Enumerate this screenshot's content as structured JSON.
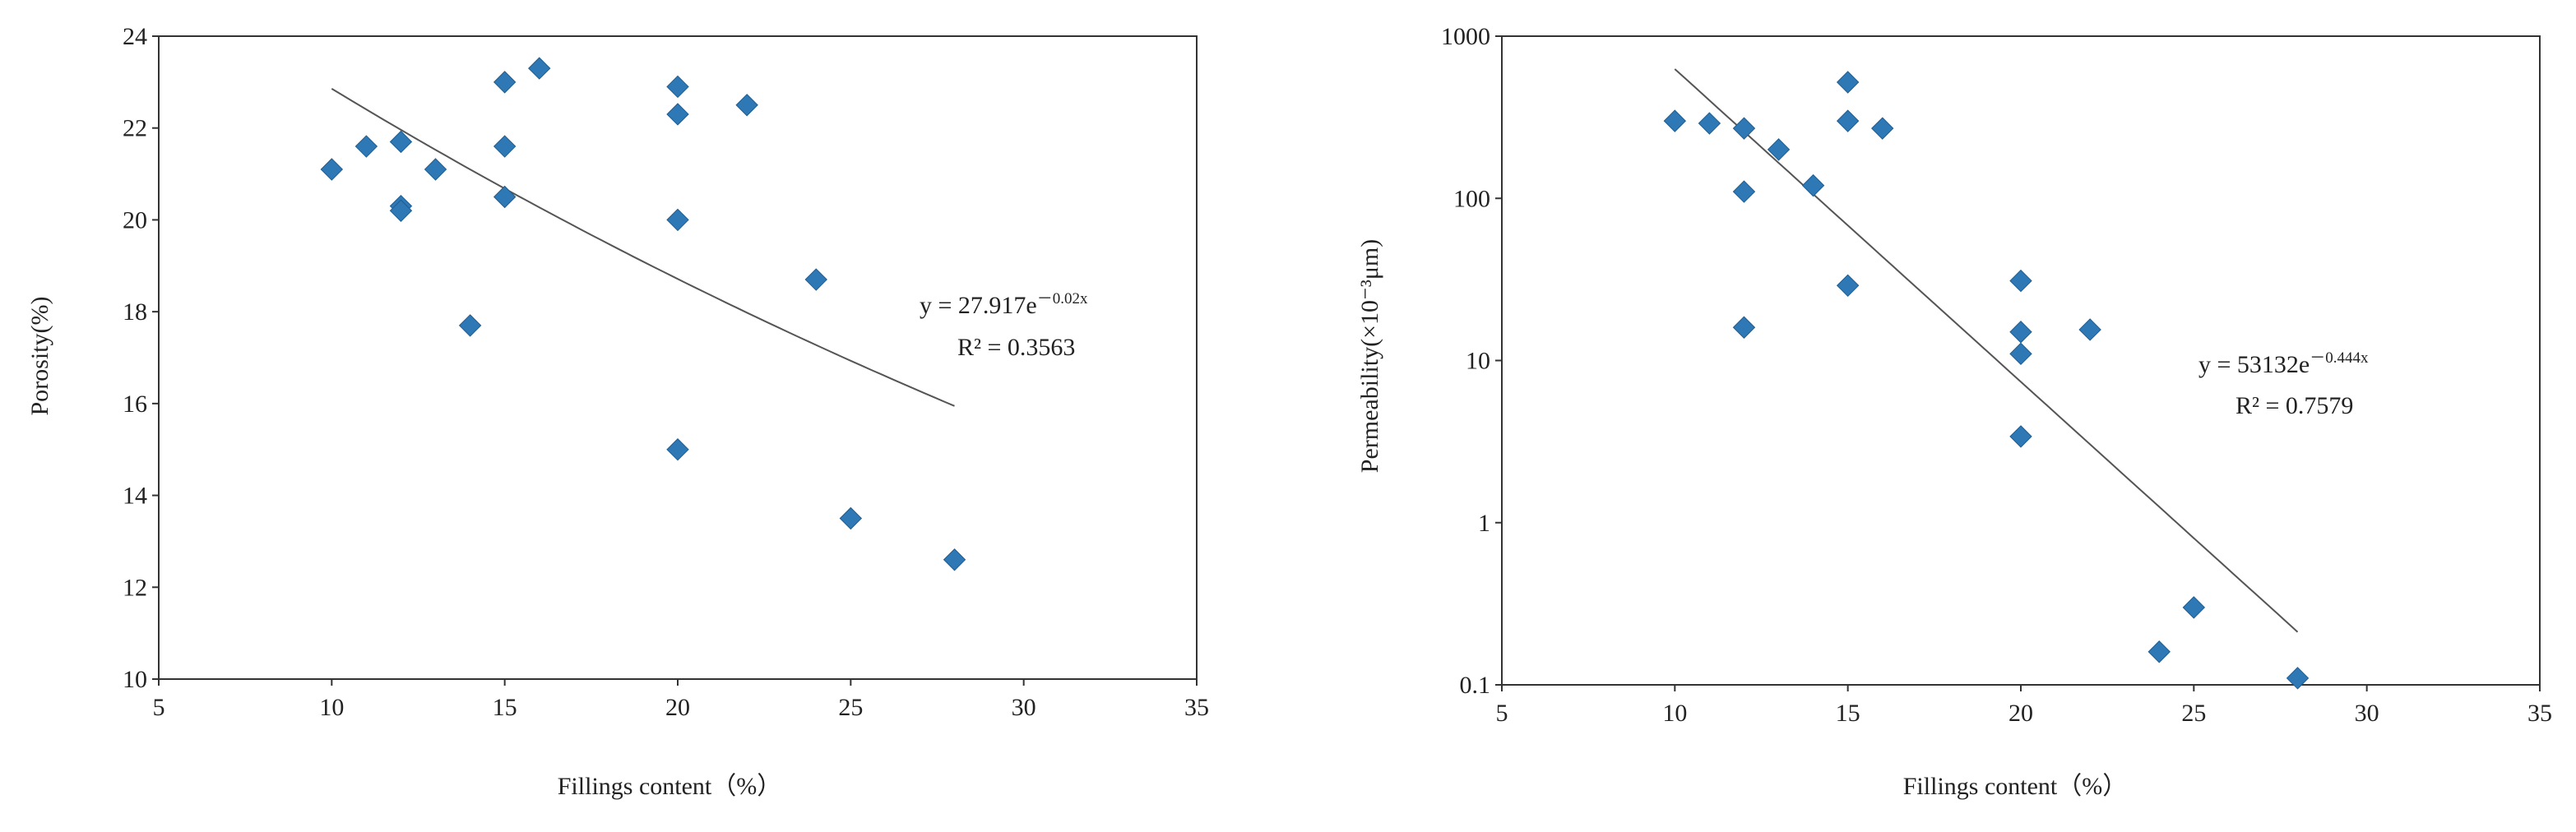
{
  "chart_data": [
    {
      "type": "scatter",
      "xlabel": "Fillings content（%）",
      "ylabel": "Porosity(%)",
      "xlim": [
        5,
        35
      ],
      "ylim": [
        10,
        24
      ],
      "xticks": [
        5,
        10,
        15,
        20,
        25,
        30,
        35
      ],
      "yticks": [
        10,
        12,
        14,
        16,
        18,
        20,
        22,
        24
      ],
      "yscale": "linear",
      "grid": false,
      "points": [
        {
          "x": 10,
          "y": 21.1
        },
        {
          "x": 11,
          "y": 21.6
        },
        {
          "x": 12,
          "y": 21.7
        },
        {
          "x": 12,
          "y": 20.3
        },
        {
          "x": 12,
          "y": 20.2
        },
        {
          "x": 13,
          "y": 21.1
        },
        {
          "x": 14,
          "y": 17.7
        },
        {
          "x": 15,
          "y": 23.0
        },
        {
          "x": 15,
          "y": 21.6
        },
        {
          "x": 15,
          "y": 20.5
        },
        {
          "x": 16,
          "y": 23.3
        },
        {
          "x": 20,
          "y": 22.9
        },
        {
          "x": 20,
          "y": 22.3
        },
        {
          "x": 20,
          "y": 20.0
        },
        {
          "x": 20,
          "y": 15.0
        },
        {
          "x": 22,
          "y": 22.5
        },
        {
          "x": 24,
          "y": 18.7
        },
        {
          "x": 25,
          "y": 13.5
        },
        {
          "x": 28,
          "y": 12.6
        }
      ],
      "marker_color": "#2e78b6",
      "trendline": {
        "type": "exponential",
        "a": 27.917,
        "b": -0.02,
        "x_range": [
          10,
          28
        ],
        "color": "#555555"
      },
      "equation": {
        "base": "y = 27.917e",
        "exponent": "－0.02x",
        "r2": "R² = 0.3563"
      }
    },
    {
      "type": "scatter",
      "xlabel": "Fillings content（%）",
      "ylabel": "Permeability(×10⁻³μm)",
      "xlim": [
        5,
        35
      ],
      "ylim": [
        0.1,
        1000
      ],
      "xticks": [
        5,
        10,
        15,
        20,
        25,
        30,
        35
      ],
      "yticks": [
        0.1,
        1,
        10,
        100,
        1000
      ],
      "ytick_labels": [
        "0.1",
        "1",
        "10",
        "100",
        "1000"
      ],
      "yscale": "log",
      "grid": false,
      "points": [
        {
          "x": 10,
          "y": 300
        },
        {
          "x": 11,
          "y": 290
        },
        {
          "x": 12,
          "y": 270
        },
        {
          "x": 12,
          "y": 110
        },
        {
          "x": 12,
          "y": 16
        },
        {
          "x": 13,
          "y": 200
        },
        {
          "x": 14,
          "y": 120
        },
        {
          "x": 15,
          "y": 520
        },
        {
          "x": 15,
          "y": 300
        },
        {
          "x": 15,
          "y": 29
        },
        {
          "x": 16,
          "y": 270
        },
        {
          "x": 20,
          "y": 31
        },
        {
          "x": 20,
          "y": 15
        },
        {
          "x": 20,
          "y": 11
        },
        {
          "x": 20,
          "y": 3.4
        },
        {
          "x": 22,
          "y": 15.5
        },
        {
          "x": 24,
          "y": 0.16
        },
        {
          "x": 25,
          "y": 0.3
        },
        {
          "x": 28,
          "y": 0.11
        }
      ],
      "marker_color": "#2e78b6",
      "trendline": {
        "type": "exponential",
        "a": 53132,
        "b": -0.444,
        "x_range": [
          10,
          28
        ],
        "color": "#555555"
      },
      "equation": {
        "base": "y = 53132e",
        "exponent": "－0.444x",
        "r2": "R² = 0.7579"
      }
    }
  ]
}
